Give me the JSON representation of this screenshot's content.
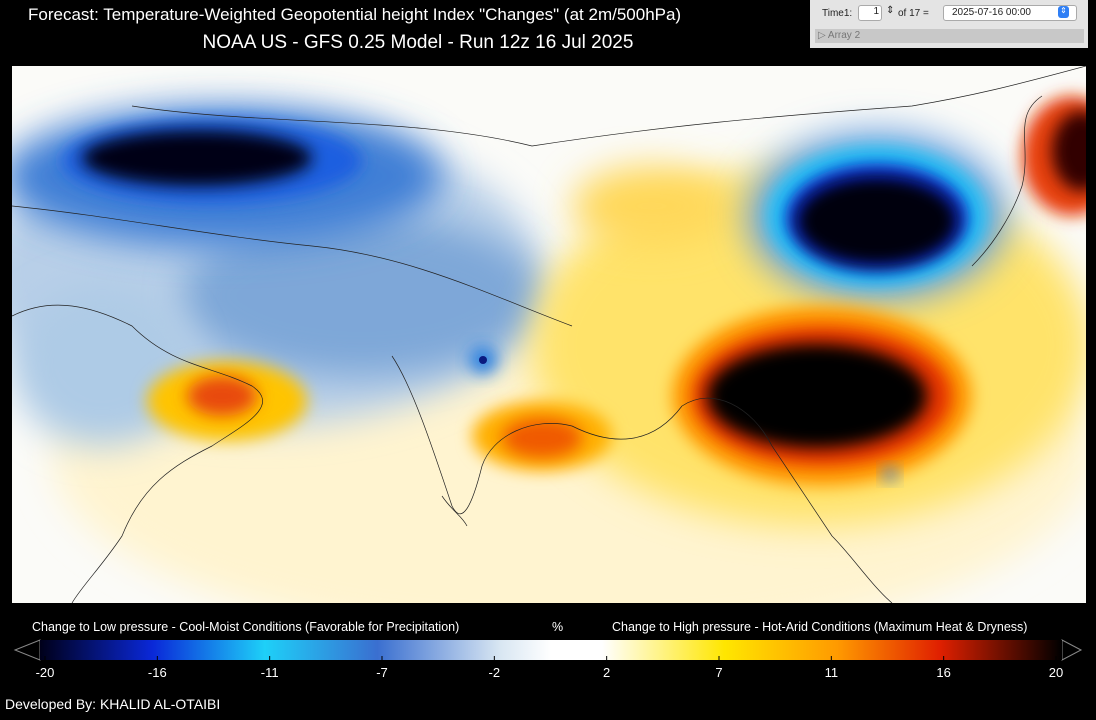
{
  "header": {
    "title": "Forecast: Temperature-Weighted Geopotential height Index \"Changes\" (at 2m/500hPa)",
    "subtitle": "NOAA US - GFS 0.25 Model - Run 12z 16 Jul 2025"
  },
  "controls": {
    "time_label": "Time1:",
    "time_index": "1",
    "time_count": "of 17 =",
    "time_value": "2025-07-16 00:00",
    "array": "▷ Array 2"
  },
  "colorbar": {
    "low_label": "Change to Low pressure - Cool-Moist Conditions (Favorable for Precipitation)",
    "unit": "%",
    "high_label": "Change to High pressure - Hot-Arid Conditions (Maximum Heat & Dryness)",
    "ticks": [
      -20,
      -16,
      -11,
      -7,
      -2,
      2,
      7,
      11,
      16,
      20
    ]
  },
  "footer": {
    "credit": "Developed By: KHALID AL-OTAIBI"
  }
}
